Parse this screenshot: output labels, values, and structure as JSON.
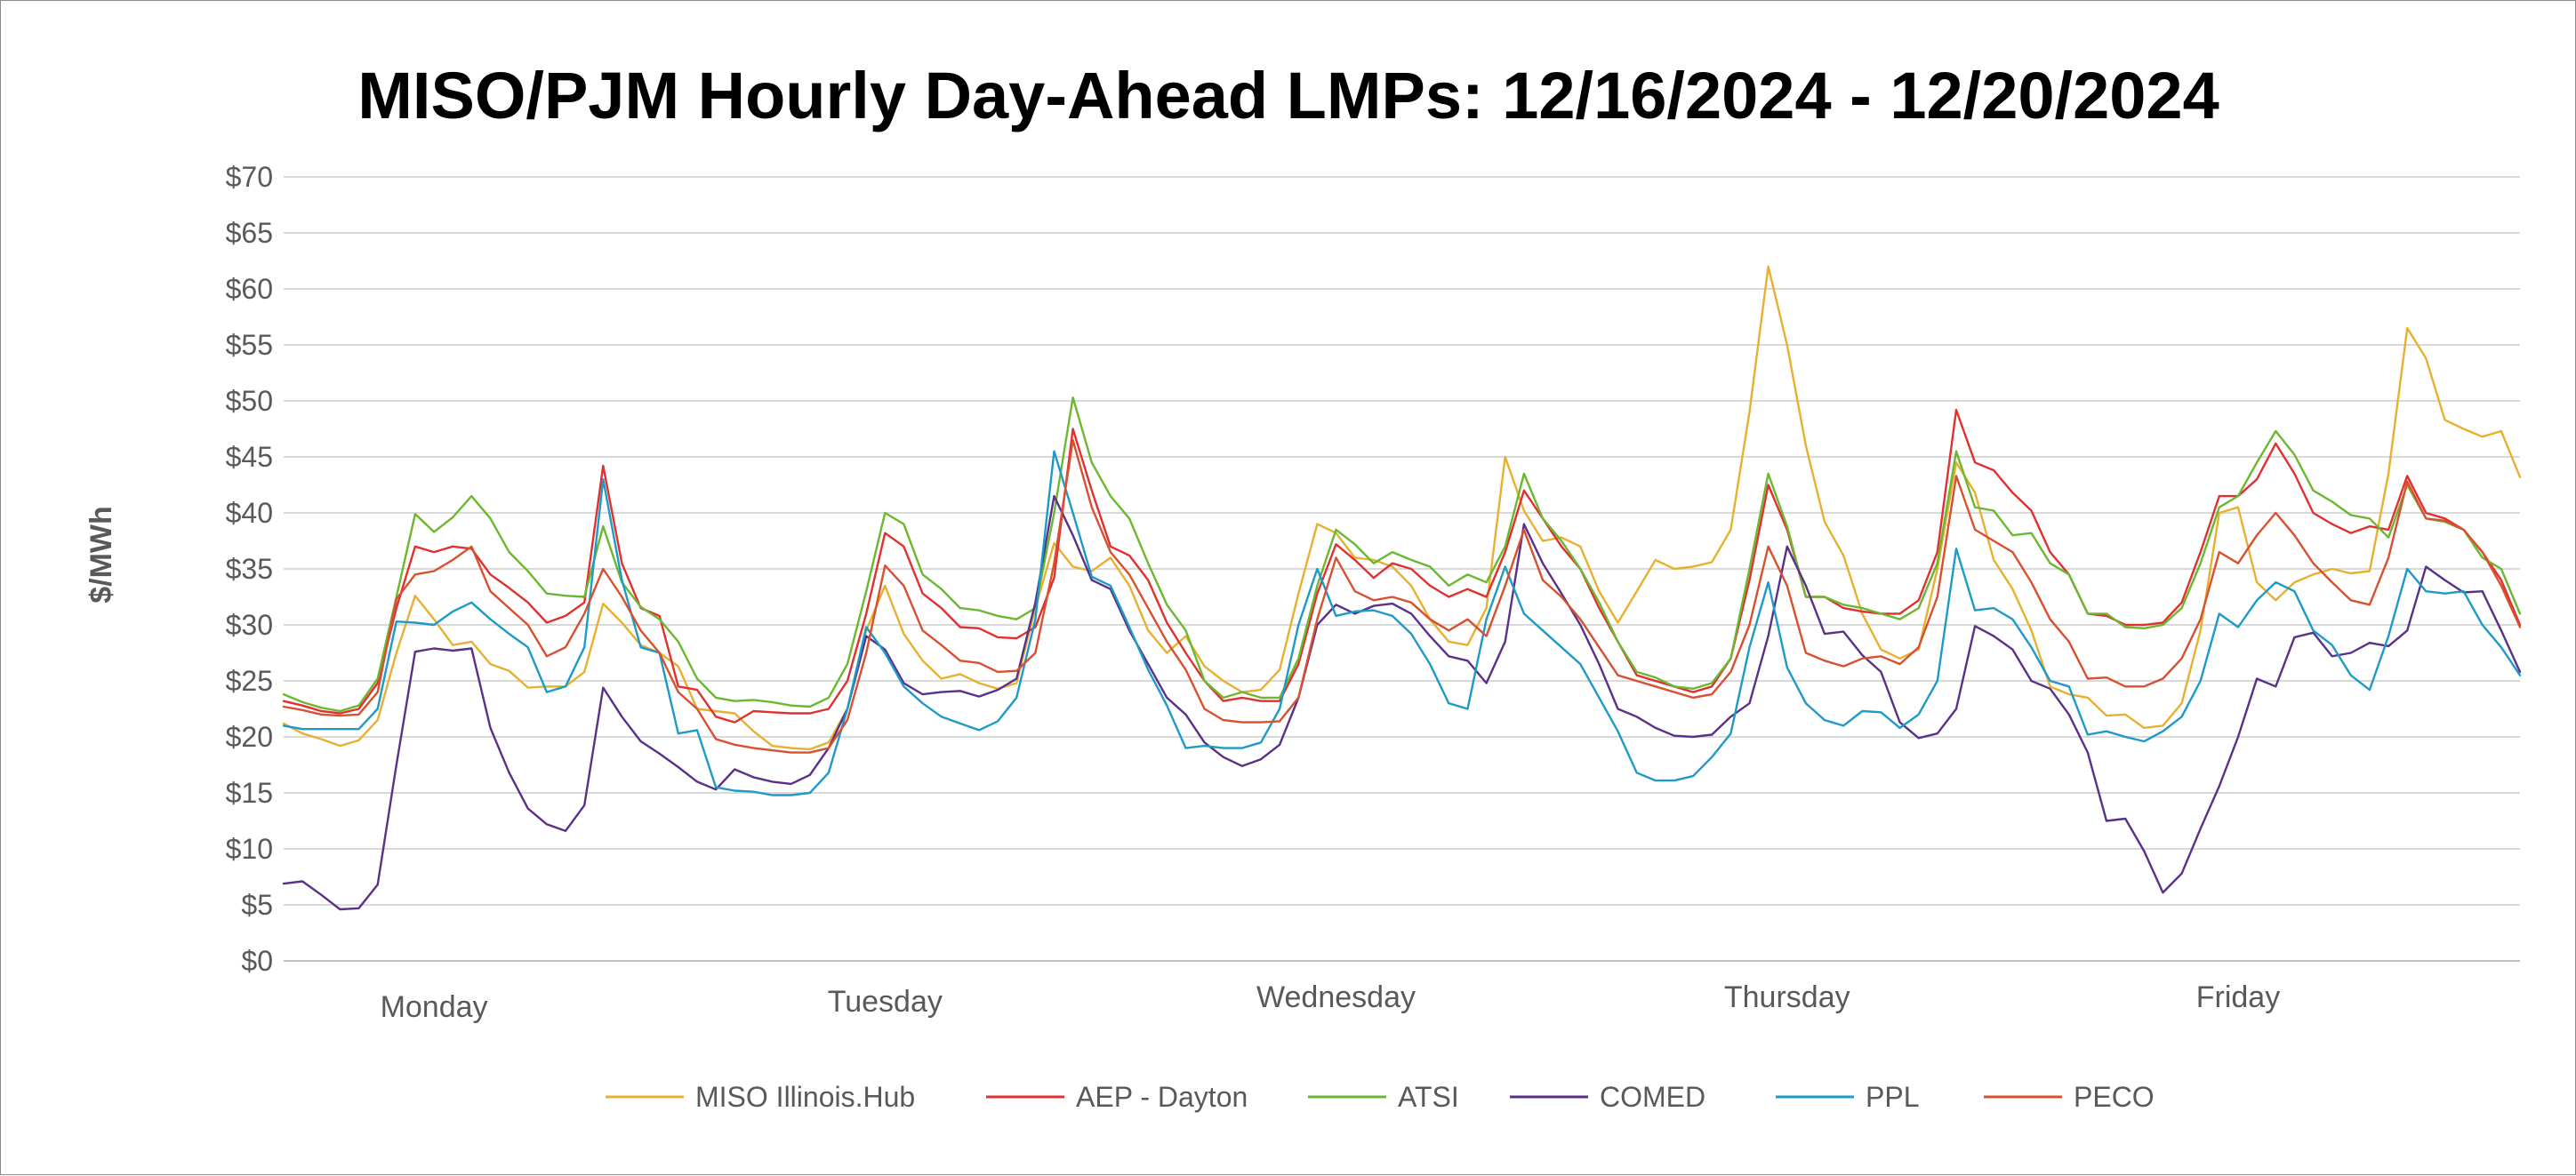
{
  "chart_data": {
    "type": "line",
    "title": "MISO/PJM Hourly Day-Ahead LMPs: 12/16/2024 - 12/20/2024",
    "ylabel": "$/MWh",
    "xlabel": "",
    "ylim": [
      0,
      70
    ],
    "yticks": [
      0,
      5,
      10,
      15,
      20,
      25,
      30,
      35,
      40,
      45,
      50,
      55,
      60,
      65,
      70
    ],
    "ytick_labels": [
      "$0",
      "$5",
      "$10",
      "$15",
      "$20",
      "$25",
      "$30",
      "$35",
      "$40",
      "$45",
      "$50",
      "$55",
      "$60",
      "$65",
      "$70"
    ],
    "days": [
      "Monday",
      "Tuesday",
      "Wednesday",
      "Thursday",
      "Friday"
    ],
    "hours_per_day": 24,
    "grid": true,
    "legend_position": "bottom",
    "series": [
      {
        "name": "MISO Illinois.Hub",
        "color": "#E8B030",
        "values": [
          21.2,
          20.3,
          19.8,
          19.2,
          19.7,
          21.5,
          27.5,
          32.6,
          30.5,
          28.2,
          28.5,
          26.5,
          25.9,
          24.4,
          24.5,
          24.5,
          25.8,
          31.9,
          30.2,
          28.2,
          27.5,
          26.3,
          22.5,
          22.3,
          22.1,
          20.5,
          19.2,
          19.0,
          18.9,
          19.5,
          22.5,
          29.5,
          33.5,
          29.2,
          26.8,
          25.2,
          25.6,
          24.8,
          24.3,
          24.8,
          31.5,
          37.3,
          35.2,
          34.8,
          36.0,
          33.5,
          29.5,
          27.5,
          29.0,
          26.3,
          25.0,
          24.0,
          24.2,
          26.0,
          32.8,
          39.0,
          38.2,
          36.0,
          35.8,
          35.2,
          33.5,
          30.5,
          28.5,
          28.2,
          31.5,
          45.0,
          40.2,
          37.5,
          37.8,
          37.0,
          33.0,
          30.2,
          33.0,
          35.8,
          35.0,
          35.2,
          35.6,
          38.5,
          49.0,
          62.0,
          55.0,
          46.0,
          39.2,
          36.2,
          31.0,
          27.8,
          27.0,
          27.8,
          35.0,
          44.5,
          41.8,
          35.8,
          33.2,
          29.5,
          24.5,
          23.8,
          23.5,
          21.9,
          22.0,
          20.8,
          21.0,
          23.0,
          29.5,
          40.0,
          40.5,
          33.8,
          32.2,
          33.8,
          34.5,
          35.0,
          34.6,
          34.8,
          43.5,
          56.5,
          53.8,
          48.3,
          47.5,
          46.8,
          47.3,
          43.2
        ]
      },
      {
        "name": "AEP - Dayton",
        "color": "#E03030",
        "values": [
          23.2,
          22.8,
          22.3,
          22.1,
          22.5,
          24.8,
          31.5,
          37.0,
          36.5,
          37.0,
          36.8,
          34.5,
          33.3,
          32.0,
          30.2,
          30.8,
          32.0,
          44.2,
          35.5,
          31.5,
          30.8,
          24.5,
          24.2,
          21.8,
          21.3,
          22.3,
          22.2,
          22.1,
          22.1,
          22.5,
          25.0,
          31.0,
          38.2,
          37.0,
          32.8,
          31.5,
          29.8,
          29.7,
          28.9,
          28.8,
          29.8,
          34.2,
          47.5,
          42.0,
          37.0,
          36.2,
          34.0,
          30.2,
          27.5,
          25.0,
          23.2,
          23.5,
          23.2,
          23.2,
          26.5,
          32.8,
          37.2,
          35.8,
          34.2,
          35.5,
          35.0,
          33.5,
          32.5,
          33.2,
          32.5,
          36.5,
          42.0,
          39.5,
          37.0,
          35.0,
          31.5,
          28.5,
          25.5,
          25.0,
          24.5,
          24.0,
          24.5,
          27.0,
          34.0,
          42.5,
          38.5,
          32.5,
          32.5,
          31.5,
          31.2,
          31.0,
          31.0,
          32.2,
          36.5,
          49.2,
          44.5,
          43.8,
          41.8,
          40.2,
          36.5,
          34.5,
          31.0,
          30.8,
          30.0,
          30.0,
          30.2,
          32.0,
          36.5,
          41.5,
          41.5,
          43.0,
          46.2,
          43.5,
          40.0,
          39.0,
          38.2,
          38.8,
          38.5,
          43.3,
          40.0,
          39.5,
          38.5,
          36.5,
          34.0,
          30.0
        ]
      },
      {
        "name": "ATSI",
        "color": "#6BB830",
        "values": [
          23.8,
          23.1,
          22.6,
          22.3,
          22.8,
          25.2,
          32.5,
          39.9,
          38.3,
          39.6,
          41.5,
          39.5,
          36.5,
          34.8,
          32.8,
          32.6,
          32.5,
          38.8,
          33.8,
          31.6,
          30.5,
          28.5,
          25.2,
          23.5,
          23.2,
          23.3,
          23.1,
          22.8,
          22.7,
          23.5,
          26.5,
          33.0,
          40.0,
          39.0,
          34.5,
          33.2,
          31.5,
          31.3,
          30.8,
          30.5,
          31.5,
          40.0,
          50.3,
          44.5,
          41.5,
          39.5,
          35.5,
          31.8,
          29.5,
          25.0,
          23.5,
          24.0,
          23.5,
          23.5,
          27.0,
          33.5,
          38.5,
          37.2,
          35.5,
          36.5,
          35.8,
          35.2,
          33.5,
          34.5,
          33.8,
          37.0,
          43.5,
          39.5,
          37.5,
          35.0,
          32.0,
          28.5,
          25.8,
          25.3,
          24.5,
          24.3,
          24.8,
          27.0,
          35.0,
          43.5,
          38.8,
          32.5,
          32.5,
          31.8,
          31.5,
          31.0,
          30.5,
          31.5,
          35.5,
          45.5,
          40.5,
          40.2,
          38.0,
          38.2,
          35.5,
          34.5,
          31.0,
          31.0,
          29.8,
          29.7,
          30.0,
          31.5,
          35.5,
          40.5,
          41.5,
          44.5,
          47.3,
          45.2,
          42.0,
          41.0,
          39.8,
          39.5,
          37.8,
          42.5,
          39.5,
          39.2,
          38.5,
          36.0,
          35.0,
          31.0
        ]
      },
      {
        "name": "COMED",
        "color": "#5A3088",
        "values": [
          6.9,
          7.1,
          5.9,
          4.6,
          4.7,
          6.8,
          17.5,
          27.6,
          27.9,
          27.7,
          27.9,
          20.8,
          16.8,
          13.6,
          12.2,
          11.6,
          13.9,
          24.4,
          21.8,
          19.6,
          18.5,
          17.3,
          16.0,
          15.3,
          17.1,
          16.4,
          16.0,
          15.8,
          16.6,
          19.0,
          22.5,
          29.0,
          27.8,
          24.8,
          23.8,
          24.0,
          24.1,
          23.6,
          24.2,
          25.2,
          32.0,
          41.5,
          38.0,
          34.0,
          33.2,
          29.5,
          26.5,
          23.5,
          22.0,
          19.5,
          18.2,
          17.4,
          18.0,
          19.3,
          23.5,
          30.0,
          31.8,
          31.0,
          31.7,
          31.9,
          31.0,
          29.0,
          27.2,
          26.8,
          24.8,
          28.5,
          39.0,
          35.5,
          32.8,
          30.0,
          26.5,
          22.5,
          21.8,
          20.8,
          20.1,
          20.0,
          20.2,
          21.8,
          23.0,
          29.0,
          37.0,
          33.5,
          29.2,
          29.4,
          27.3,
          25.8,
          21.3,
          19.9,
          20.3,
          22.5,
          29.9,
          29.0,
          27.8,
          25.0,
          24.3,
          22.0,
          18.6,
          12.5,
          12.7,
          9.8,
          6.1,
          7.8,
          11.8,
          15.6,
          20.0,
          25.2,
          24.5,
          28.9,
          29.3,
          27.2,
          27.5,
          28.4,
          28.1,
          29.5,
          35.2,
          34.0,
          32.9,
          33.0,
          29.5,
          25.8
        ]
      },
      {
        "name": "PPL",
        "color": "#1E9AC8",
        "values": [
          21.0,
          20.7,
          20.7,
          20.7,
          20.7,
          22.5,
          30.3,
          30.2,
          30.0,
          31.2,
          32.0,
          30.5,
          29.2,
          28.0,
          24.0,
          24.5,
          28.0,
          43.0,
          34.0,
          28.0,
          27.5,
          20.3,
          20.6,
          15.5,
          15.2,
          15.1,
          14.8,
          14.8,
          15.0,
          16.8,
          22.5,
          29.8,
          27.5,
          24.5,
          23.0,
          21.8,
          21.2,
          20.6,
          21.4,
          23.5,
          30.5,
          45.5,
          40.0,
          34.3,
          33.5,
          29.8,
          26.0,
          22.8,
          19.0,
          19.2,
          19.0,
          19.0,
          19.5,
          22.5,
          30.0,
          35.0,
          30.8,
          31.2,
          31.3,
          30.8,
          29.2,
          26.5,
          23.0,
          22.5,
          30.5,
          35.2,
          31.0,
          29.5,
          28.0,
          26.5,
          23.5,
          20.5,
          16.8,
          16.1,
          16.1,
          16.5,
          18.2,
          20.3,
          28.0,
          33.8,
          26.2,
          23.0,
          21.5,
          21.0,
          22.3,
          22.2,
          20.8,
          22.0,
          25.0,
          36.8,
          31.3,
          31.5,
          30.5,
          28.0,
          25.0,
          24.5,
          20.2,
          20.5,
          20.0,
          19.6,
          20.5,
          21.8,
          25.0,
          31.0,
          29.8,
          32.2,
          33.8,
          33.0,
          29.5,
          28.2,
          25.5,
          24.2,
          29.0,
          35.0,
          33.0,
          32.8,
          33.0,
          30.0,
          28.0,
          25.5
        ]
      },
      {
        "name": "PECO",
        "color": "#D85030",
        "values": [
          22.7,
          22.4,
          22.0,
          21.9,
          22.0,
          24.0,
          32.3,
          34.5,
          34.8,
          35.8,
          37.0,
          33.0,
          31.5,
          30.0,
          27.2,
          28.0,
          31.0,
          35.0,
          32.5,
          29.5,
          27.5,
          24.0,
          22.5,
          19.8,
          19.3,
          19.0,
          18.8,
          18.6,
          18.6,
          19.0,
          21.5,
          27.5,
          35.3,
          33.5,
          29.5,
          28.2,
          26.8,
          26.6,
          25.8,
          25.9,
          27.5,
          35.5,
          46.5,
          40.5,
          36.5,
          34.5,
          31.5,
          28.5,
          26.0,
          22.5,
          21.5,
          21.3,
          21.3,
          21.4,
          23.5,
          30.5,
          36.0,
          33.0,
          32.2,
          32.5,
          32.0,
          30.5,
          29.5,
          30.5,
          29.0,
          33.5,
          38.5,
          34.0,
          32.5,
          30.5,
          28.0,
          25.5,
          25.0,
          24.5,
          24.0,
          23.5,
          23.8,
          25.8,
          30.0,
          37.0,
          33.5,
          27.5,
          26.8,
          26.3,
          27.0,
          27.2,
          26.5,
          28.0,
          32.5,
          43.3,
          38.5,
          37.5,
          36.5,
          33.8,
          30.5,
          28.5,
          25.2,
          25.3,
          24.5,
          24.5,
          25.2,
          27.0,
          30.5,
          36.5,
          35.5,
          38.0,
          40.0,
          38.0,
          35.5,
          33.8,
          32.2,
          31.8,
          36.0,
          42.8,
          39.5,
          39.3,
          38.5,
          36.5,
          33.5,
          29.8
        ]
      }
    ]
  }
}
